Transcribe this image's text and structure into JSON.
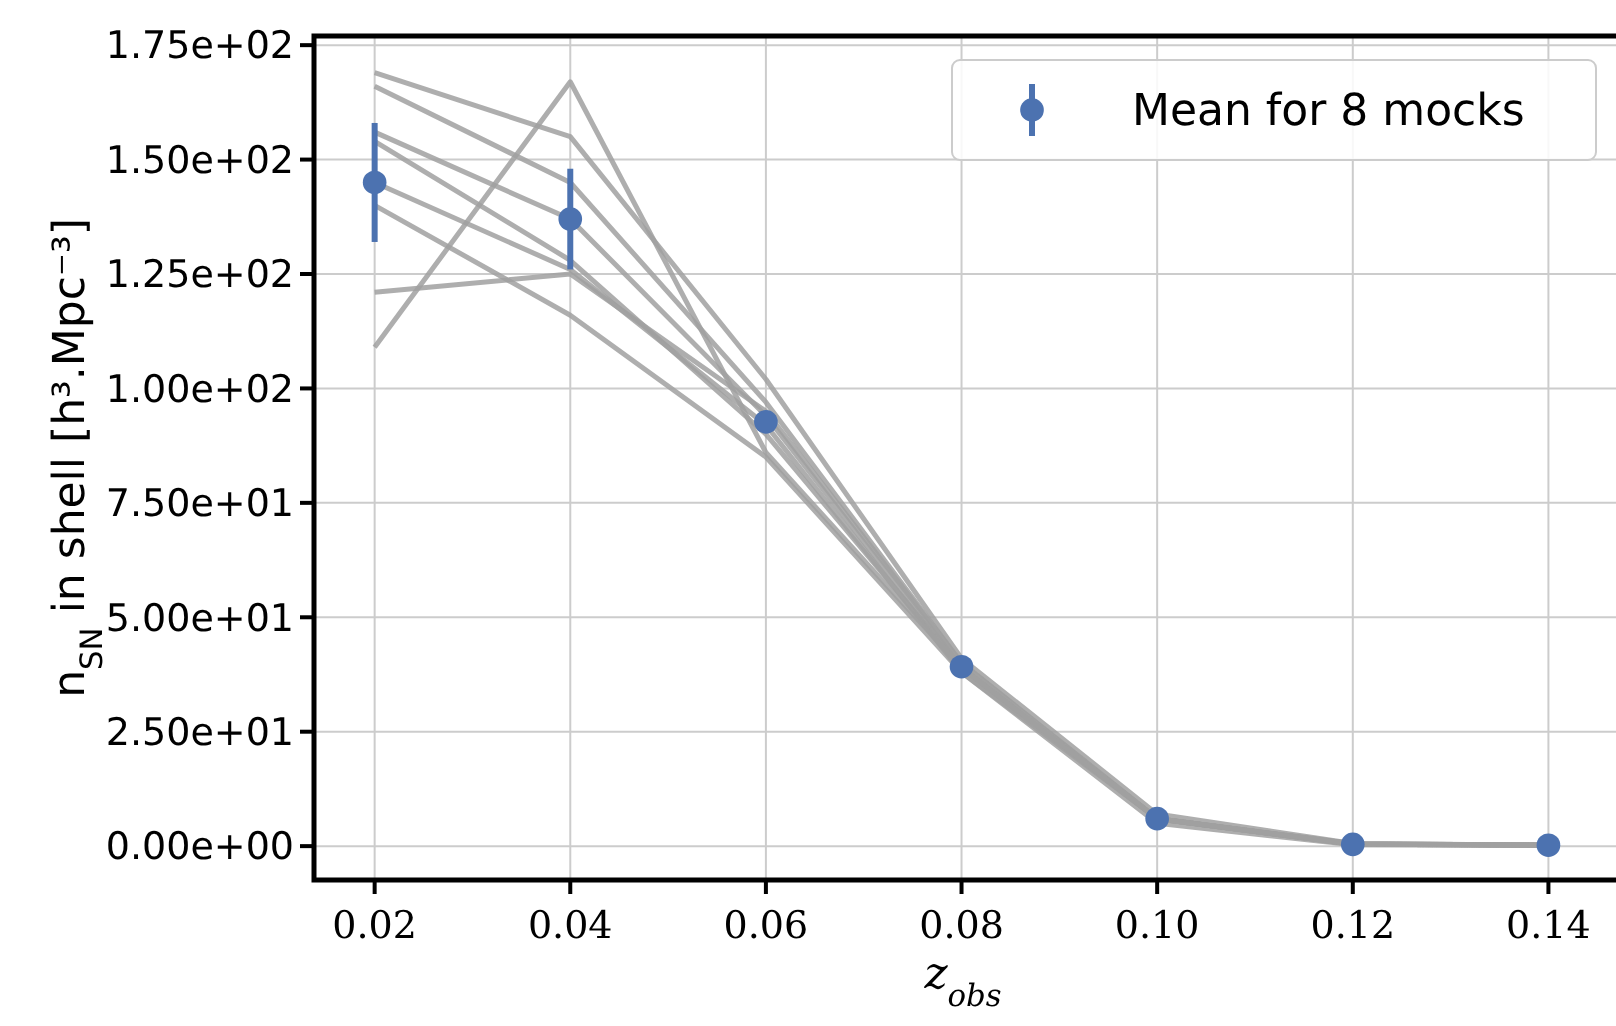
{
  "chart_data": {
    "type": "line",
    "xlabel": "z$_{obs}$",
    "ylabel": "n$_{SN}$ in shell [h³.Mpc⁻³]",
    "x": [
      0.02,
      0.04,
      0.06,
      0.08,
      0.1,
      0.12,
      0.14
    ],
    "xlim": [
      0.0138,
      0.1465
    ],
    "xticks": [
      0.02,
      0.04,
      0.06,
      0.08,
      {
        "value": 0.1,
        "label": "0.10"
      },
      0.12,
      0.14
    ],
    "ylim": [
      -7.4,
      177
    ],
    "yticks": [
      {
        "value": 0,
        "label": "0.00e+00"
      },
      {
        "value": 25,
        "label": "2.50e+01"
      },
      {
        "value": 50,
        "label": "5.00e+01"
      },
      {
        "value": 75,
        "label": "7.50e+01"
      },
      {
        "value": 100,
        "label": "1.00e+02"
      },
      {
        "value": 125,
        "label": "1.25e+02"
      },
      {
        "value": 150,
        "label": "1.50e+02"
      },
      {
        "value": 175,
        "label": "1.75e+02"
      }
    ],
    "grid": true,
    "legend": "top right",
    "line_style": "solid",
    "series": [
      {
        "color": "#a0a0a0",
        "values": [
          169,
          155,
          102,
          41,
          7,
          0.6,
          0.2
        ]
      },
      {
        "color": "#a0a0a0",
        "values": [
          166,
          145,
          97,
          40,
          6,
          0.5,
          0.2
        ]
      },
      {
        "color": "#a0a0a0",
        "values": [
          156,
          137,
          94,
          39,
          6,
          0.4,
          0.2
        ]
      },
      {
        "color": "#a0a0a0",
        "values": [
          154,
          128,
          90,
          39,
          6,
          0.4,
          0.2
        ]
      },
      {
        "color": "#a0a0a0",
        "values": [
          145,
          126,
          92,
          38,
          5,
          0.3,
          0.2
        ]
      },
      {
        "color": "#a0a0a0",
        "values": [
          140,
          116,
          85,
          38,
          6,
          0.4,
          0.2
        ]
      },
      {
        "color": "#a0a0a0",
        "values": [
          121,
          125,
          95,
          40,
          6,
          0.4,
          0.2
        ]
      },
      {
        "color": "#a0a0a0",
        "values": [
          109,
          167,
          86,
          39,
          6,
          0.5,
          0.2
        ]
      },
      {
        "type": "scatter",
        "name": "Mean for 8 mocks",
        "color": "#4c72b0",
        "marker": "circle",
        "values": [
          145,
          137,
          92.7,
          39.2,
          6,
          0.4,
          0.2
        ],
        "errors": [
          13,
          11,
          null,
          null,
          null,
          null,
          null
        ]
      }
    ]
  }
}
